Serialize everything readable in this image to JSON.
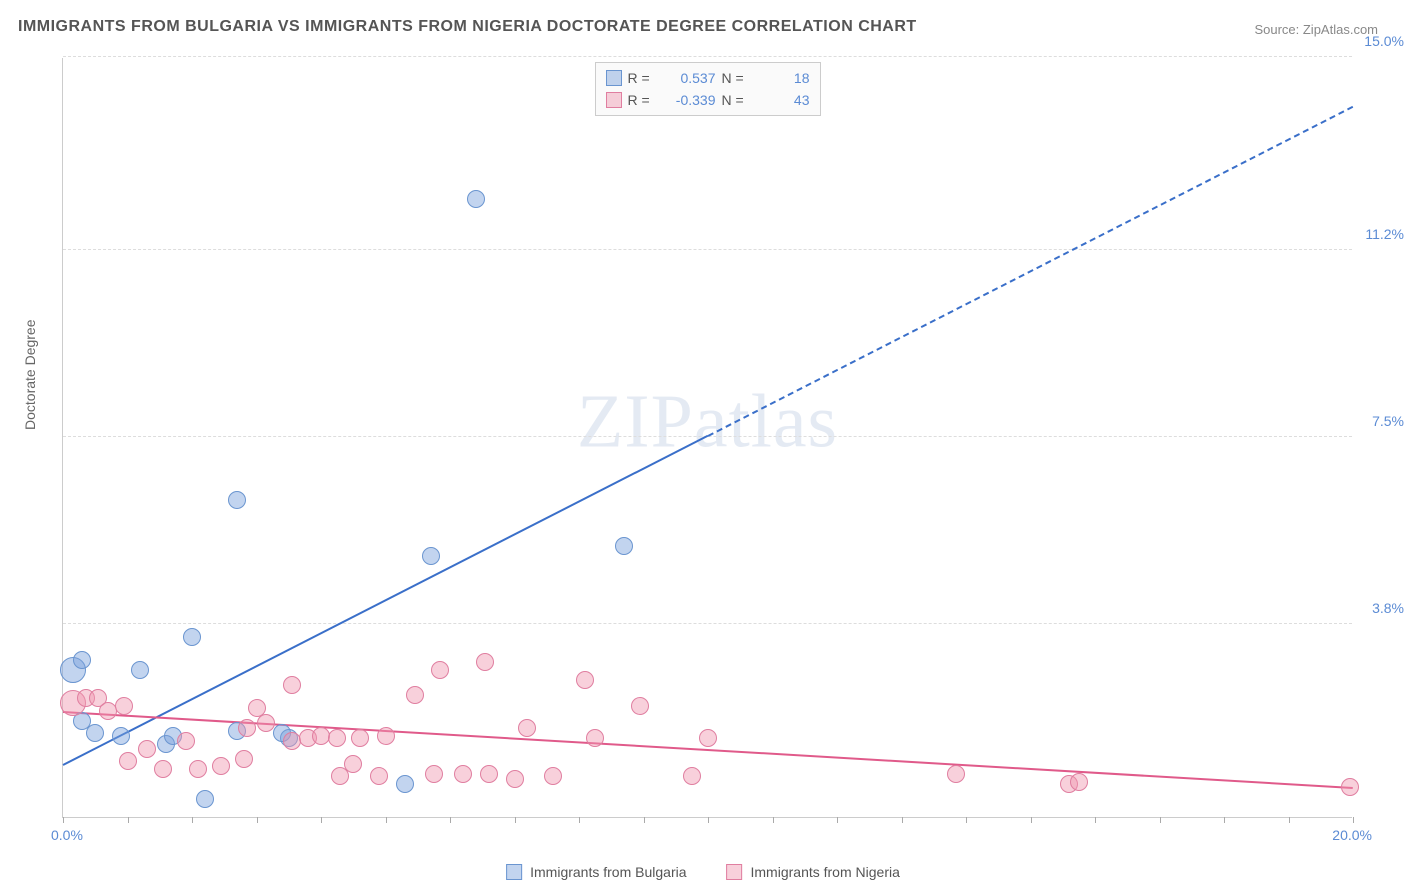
{
  "title": "IMMIGRANTS FROM BULGARIA VS IMMIGRANTS FROM NIGERIA DOCTORATE DEGREE CORRELATION CHART",
  "source_label": "Source: ZipAtlas.com",
  "yaxis_title": "Doctorate Degree",
  "watermark": {
    "part1": "ZIP",
    "part2": "atlas"
  },
  "chart": {
    "type": "scatter",
    "xlim": [
      0,
      20
    ],
    "ylim": [
      0,
      15
    ],
    "x_ticks": [
      0,
      1,
      2,
      3,
      4,
      5,
      6,
      7,
      8,
      9,
      10,
      11,
      12,
      13,
      14,
      15,
      16,
      17,
      18,
      19,
      20
    ],
    "y_gridlines": [
      3.8,
      7.5,
      11.2,
      15.0
    ],
    "y_tick_labels": [
      "3.8%",
      "7.5%",
      "11.2%",
      "15.0%"
    ],
    "x_min_label": "0.0%",
    "x_max_label": "20.0%",
    "background_color": "#ffffff",
    "grid_color": "#dddddd",
    "axis_color": "#cccccc",
    "tick_label_color": "#5b8bd4",
    "series": [
      {
        "name": "Immigrants from Bulgaria",
        "color_fill": "rgba(120,160,220,0.45)",
        "color_stroke": "#6a95d0",
        "trend_color": "#3a6fc9",
        "trend_solid_until_x": 10.0,
        "trend": {
          "x1": 0,
          "y1": 1.0,
          "x2": 20,
          "y2": 14.0
        },
        "R": "0.537",
        "N": "18",
        "marker_radius": 9,
        "points": [
          {
            "x": 0.15,
            "y": 2.9,
            "r": 13
          },
          {
            "x": 0.3,
            "y": 3.1
          },
          {
            "x": 0.3,
            "y": 1.9
          },
          {
            "x": 0.5,
            "y": 1.65
          },
          {
            "x": 0.9,
            "y": 1.6
          },
          {
            "x": 1.2,
            "y": 2.9
          },
          {
            "x": 1.6,
            "y": 1.45
          },
          {
            "x": 1.7,
            "y": 1.6
          },
          {
            "x": 2.0,
            "y": 3.55
          },
          {
            "x": 2.2,
            "y": 0.35
          },
          {
            "x": 2.7,
            "y": 6.25
          },
          {
            "x": 2.7,
            "y": 1.7
          },
          {
            "x": 3.5,
            "y": 1.55
          },
          {
            "x": 3.4,
            "y": 1.65
          },
          {
            "x": 5.3,
            "y": 0.65
          },
          {
            "x": 5.7,
            "y": 5.15
          },
          {
            "x": 6.4,
            "y": 12.2
          },
          {
            "x": 8.7,
            "y": 5.35
          }
        ]
      },
      {
        "name": "Immigrants from Nigeria",
        "color_fill": "rgba(240,150,175,0.45)",
        "color_stroke": "#e07ea0",
        "trend_color": "#e05a8a",
        "trend_solid_until_x": 20.0,
        "trend": {
          "x1": 0,
          "y1": 2.05,
          "x2": 20,
          "y2": 0.55
        },
        "R": "-0.339",
        "N": "43",
        "marker_radius": 9,
        "points": [
          {
            "x": 0.15,
            "y": 2.25,
            "r": 13
          },
          {
            "x": 0.35,
            "y": 2.35
          },
          {
            "x": 0.55,
            "y": 2.35
          },
          {
            "x": 0.7,
            "y": 2.1
          },
          {
            "x": 0.95,
            "y": 2.2
          },
          {
            "x": 1.0,
            "y": 1.1
          },
          {
            "x": 1.3,
            "y": 1.35
          },
          {
            "x": 1.55,
            "y": 0.95
          },
          {
            "x": 1.9,
            "y": 1.5
          },
          {
            "x": 2.1,
            "y": 0.95
          },
          {
            "x": 2.45,
            "y": 1.0
          },
          {
            "x": 2.8,
            "y": 1.15
          },
          {
            "x": 2.85,
            "y": 1.75
          },
          {
            "x": 3.0,
            "y": 2.15
          },
          {
            "x": 3.15,
            "y": 1.85
          },
          {
            "x": 3.55,
            "y": 1.5
          },
          {
            "x": 3.55,
            "y": 2.6
          },
          {
            "x": 3.8,
            "y": 1.55
          },
          {
            "x": 4.0,
            "y": 1.6
          },
          {
            "x": 4.25,
            "y": 1.55
          },
          {
            "x": 4.3,
            "y": 0.8
          },
          {
            "x": 4.5,
            "y": 1.05
          },
          {
            "x": 4.6,
            "y": 1.55
          },
          {
            "x": 4.9,
            "y": 0.8
          },
          {
            "x": 5.0,
            "y": 1.6
          },
          {
            "x": 5.45,
            "y": 2.4
          },
          {
            "x": 5.75,
            "y": 0.85
          },
          {
            "x": 5.85,
            "y": 2.9
          },
          {
            "x": 6.2,
            "y": 0.85
          },
          {
            "x": 6.55,
            "y": 3.05
          },
          {
            "x": 6.6,
            "y": 0.85
          },
          {
            "x": 7.0,
            "y": 0.75
          },
          {
            "x": 7.2,
            "y": 1.75
          },
          {
            "x": 7.6,
            "y": 0.8
          },
          {
            "x": 8.1,
            "y": 2.7
          },
          {
            "x": 8.25,
            "y": 1.55
          },
          {
            "x": 8.95,
            "y": 2.2
          },
          {
            "x": 9.75,
            "y": 0.8
          },
          {
            "x": 10.0,
            "y": 1.55
          },
          {
            "x": 13.85,
            "y": 0.85
          },
          {
            "x": 15.6,
            "y": 0.65
          },
          {
            "x": 15.75,
            "y": 0.7
          },
          {
            "x": 19.95,
            "y": 0.6
          }
        ]
      }
    ]
  },
  "legend_top": {
    "R_label": "R =",
    "N_label": "N ="
  },
  "legend_bottom_labels": [
    "Immigrants from Bulgaria",
    "Immigrants from Nigeria"
  ]
}
